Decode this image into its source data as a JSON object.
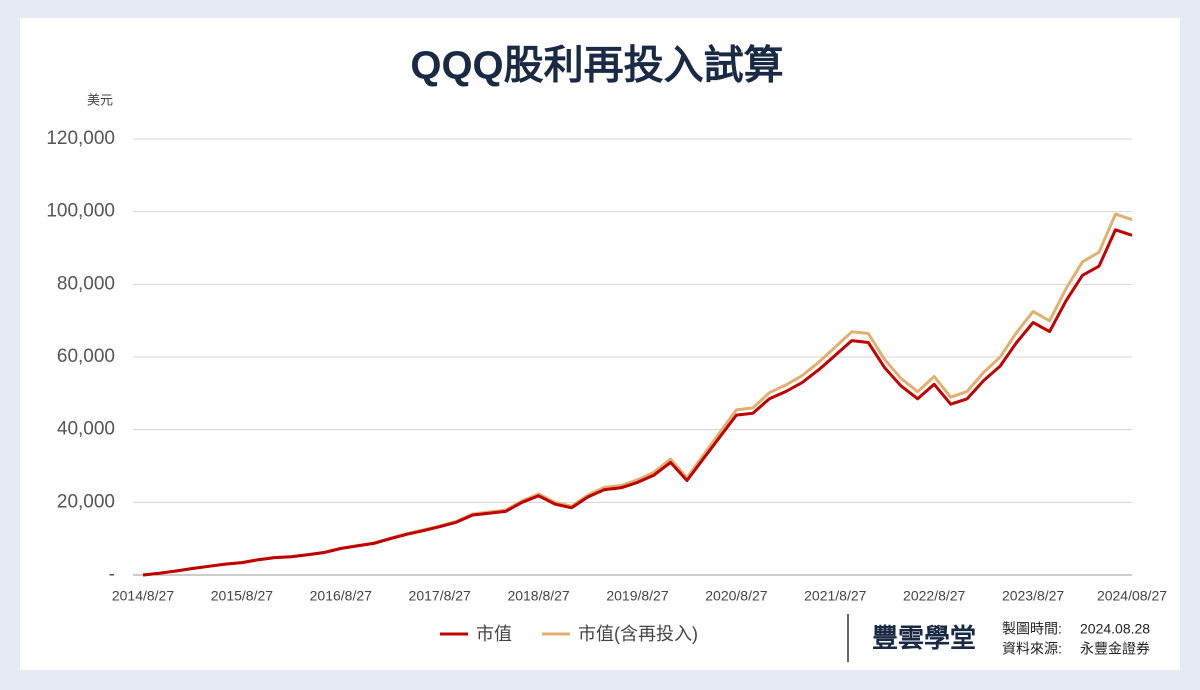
{
  "chart_data": {
    "type": "line",
    "title": "QQQ股利再投入試算",
    "y_unit": "美元",
    "categories": [
      "2014/8/27",
      null,
      null,
      null,
      null,
      null,
      "2015/8/27",
      null,
      null,
      null,
      null,
      null,
      "2016/8/27",
      null,
      null,
      null,
      null,
      null,
      "2017/8/27",
      null,
      null,
      null,
      null,
      null,
      "2018/8/27",
      null,
      null,
      null,
      null,
      null,
      "2019/8/27",
      null,
      null,
      null,
      null,
      null,
      "2020/8/27",
      null,
      null,
      null,
      null,
      null,
      "2021/8/27",
      null,
      null,
      null,
      null,
      null,
      "2022/8/27",
      null,
      null,
      null,
      null,
      null,
      "2023/8/27",
      null,
      null,
      null,
      null,
      null,
      "2024/08/27"
    ],
    "series": [
      {
        "name": "市值",
        "color": "#c00000",
        "values": [
          0,
          500,
          1100,
          1800,
          2400,
          3000,
          3400,
          4200,
          4800,
          5000,
          5600,
          6200,
          7300,
          8000,
          8700,
          10000,
          11200,
          12200,
          13300,
          14500,
          16500,
          17000,
          17500,
          20000,
          21800,
          19500,
          18500,
          21500,
          23500,
          24000,
          25500,
          27500,
          31000,
          26000,
          32000,
          38000,
          44000,
          44500,
          48500,
          50500,
          53000,
          56500,
          60500,
          64500,
          64000,
          57000,
          52000,
          48500,
          52500,
          47000,
          48500,
          53500,
          57500,
          64000,
          69500,
          67000,
          75500,
          82500,
          85000,
          95000,
          93500
        ]
      },
      {
        "name": "市值(含再投入)",
        "color": "#e0b070",
        "values": [
          0,
          500,
          1100,
          1800,
          2410,
          3010,
          3420,
          4230,
          4840,
          5040,
          5650,
          6260,
          7380,
          8100,
          8810,
          10140,
          11360,
          12390,
          13520,
          14750,
          16800,
          17330,
          17850,
          20420,
          22280,
          19950,
          18940,
          22030,
          24100,
          24640,
          26200,
          28280,
          31910,
          26790,
          33000,
          39220,
          45450,
          46000,
          50170,
          52280,
          54900,
          58570,
          62750,
          66940,
          66460,
          59230,
          54060,
          50450,
          54640,
          48940,
          50530,
          55760,
          59960,
          66770,
          72540,
          69960,
          78860,
          86200,
          88840,
          99330,
          97790
        ]
      }
    ],
    "ylim": [
      0,
      120000
    ],
    "yticks": [
      {
        "value": 0,
        "label": "-"
      },
      {
        "value": 20000,
        "label": "20,000"
      },
      {
        "value": 40000,
        "label": "40,000"
      },
      {
        "value": 60000,
        "label": "60,000"
      },
      {
        "value": 80000,
        "label": "80,000"
      },
      {
        "value": 100000,
        "label": "100,000"
      },
      {
        "value": 120000,
        "label": "120,000"
      }
    ],
    "grid": true
  },
  "footer": {
    "brand": "豐雲學堂",
    "date_label": "製圖時間:",
    "date": "2024.08.28",
    "source_label": "資料來源:",
    "source": "永豐金證券"
  }
}
